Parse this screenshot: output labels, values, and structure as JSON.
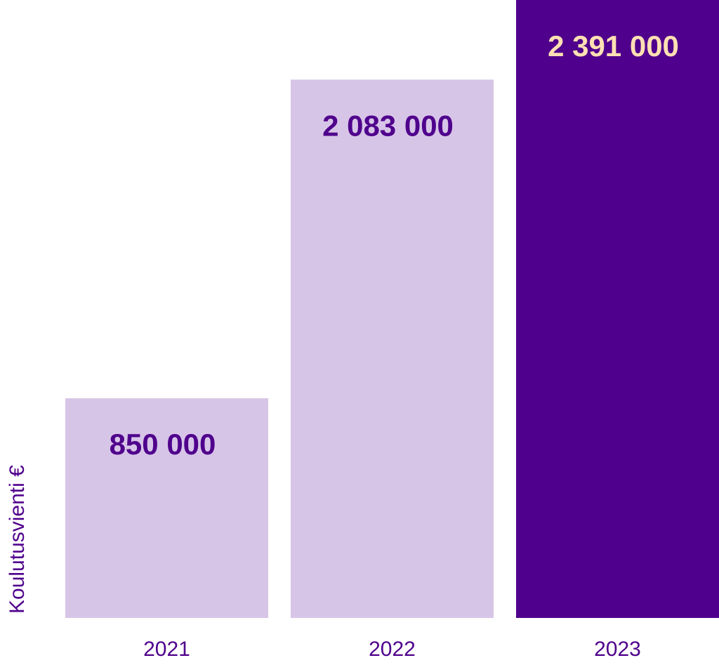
{
  "chart_data": {
    "type": "bar",
    "categories": [
      "2021",
      "2022",
      "2023"
    ],
    "values": [
      850000,
      2083000,
      2391000
    ],
    "data_labels": [
      "850 000",
      "2 083 000",
      "2 391 000"
    ],
    "xlabel": "",
    "ylabel": "Koulutusvienti €",
    "ylim": [
      0,
      2391000
    ],
    "grid": false,
    "legend": "none"
  },
  "colors": {
    "light_bar": "#d7c5e7",
    "dark_bar": "#4f008c",
    "label_dark": "#4f008c",
    "label_highlight": "#ffe0b3",
    "tick_text": "#4f008c"
  }
}
